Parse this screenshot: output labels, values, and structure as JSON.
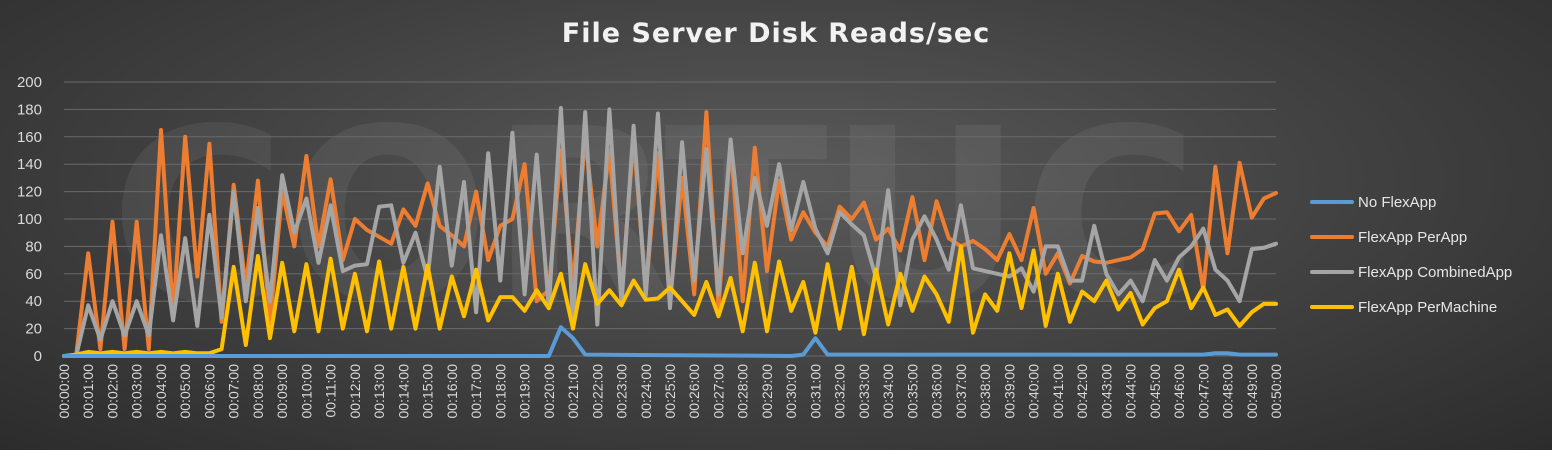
{
  "chart_data": {
    "type": "line",
    "title": "File Server Disk Reads/sec",
    "xlabel": "",
    "ylabel": "",
    "ylim": [
      0,
      200
    ],
    "yticks": [
      0,
      20,
      40,
      60,
      80,
      100,
      120,
      140,
      160,
      180,
      200
    ],
    "grid": true,
    "legend_position": "right",
    "x_tick_labels": [
      "00:00:00",
      "00:01:00",
      "00:02:00",
      "00:03:00",
      "00:04:00",
      "00:05:00",
      "00:06:00",
      "00:07:00",
      "00:08:00",
      "00:09:00",
      "00:10:00",
      "00:11:00",
      "00:12:00",
      "00:13:00",
      "00:14:00",
      "00:15:00",
      "00:16:00",
      "00:17:00",
      "00:18:00",
      "00:19:00",
      "00:20:00",
      "00:21:00",
      "00:22:00",
      "00:23:00",
      "00:24:00",
      "00:25:00",
      "00:26:00",
      "00:27:00",
      "00:28:00",
      "00:29:00",
      "00:30:00",
      "00:31:00",
      "00:32:00",
      "00:33:00",
      "00:34:00",
      "00:35:00",
      "00:36:00",
      "00:37:00",
      "00:38:00",
      "00:39:00",
      "00:40:00",
      "00:41:00",
      "00:42:00",
      "00:43:00",
      "00:44:00",
      "00:45:00",
      "00:46:00",
      "00:47:00",
      "00:48:00",
      "00:49:00",
      "00:50:00"
    ],
    "x_range_minutes": [
      0,
      50
    ],
    "series": [
      {
        "name": "No FlexApp",
        "color": "#5b9bd5",
        "x_minutes": [
          0,
          20,
          20.5,
          21,
          21.5,
          30,
          30.5,
          31,
          31.5,
          47,
          47.5,
          48,
          48.5,
          50
        ],
        "values": [
          0,
          0,
          21,
          13,
          1,
          0,
          1,
          13,
          1,
          1,
          2,
          2,
          1,
          1
        ]
      },
      {
        "name": "FlexApp PerApp",
        "color": "#ed7d31",
        "x_minutes": [
          0,
          0.5,
          1,
          1.5,
          2,
          2.5,
          3,
          3.5,
          4,
          4.5,
          5,
          5.5,
          6,
          6.5,
          7,
          7.5,
          8,
          8.5,
          9,
          9.5,
          10,
          10.5,
          11,
          11.5,
          12,
          12.5,
          13,
          13.5,
          14,
          14.5,
          15,
          15.5,
          16,
          16.5,
          17,
          17.5,
          18,
          18.5,
          19,
          19.5,
          20,
          20.5,
          21,
          21.5,
          22,
          22.5,
          23,
          23.5,
          24,
          24.5,
          25,
          25.5,
          26,
          26.5,
          27,
          27.5,
          28,
          28.5,
          29,
          29.5,
          30,
          30.5,
          31,
          31.5,
          32,
          32.5,
          33,
          33.5,
          34,
          34.5,
          35,
          35.5,
          36,
          36.5,
          37,
          37.5,
          38,
          38.5,
          39,
          39.5,
          40,
          40.5,
          41,
          41.5,
          42,
          42.5,
          43,
          43.5,
          44,
          44.5,
          45,
          45.5,
          46,
          46.5,
          47,
          47.5,
          48,
          48.5,
          49,
          49.5,
          50
        ],
        "values": [
          0,
          0,
          75,
          5,
          98,
          5,
          98,
          5,
          165,
          30,
          160,
          58,
          155,
          25,
          125,
          50,
          128,
          25,
          120,
          80,
          146,
          80,
          129,
          70,
          100,
          92,
          87,
          82,
          107,
          95,
          126,
          95,
          88,
          80,
          120,
          70,
          95,
          100,
          140,
          40,
          48,
          150,
          50,
          160,
          80,
          150,
          45,
          160,
          47,
          148,
          40,
          130,
          45,
          178,
          35,
          155,
          40,
          152,
          62,
          128,
          85,
          105,
          90,
          80,
          109,
          100,
          112,
          85,
          93,
          77,
          116,
          70,
          113,
          86,
          80,
          84,
          78,
          70,
          89,
          70,
          108,
          60,
          75,
          53,
          73,
          69,
          68,
          70,
          72,
          78,
          104,
          105,
          91,
          103,
          48,
          138,
          75,
          141,
          101,
          115,
          119
        ]
      },
      {
        "name": "FlexApp CombinedApp",
        "color": "#a5a5a5",
        "x_minutes": [
          0,
          0.5,
          1,
          1.5,
          2,
          2.5,
          3,
          3.5,
          4,
          4.5,
          5,
          5.5,
          6,
          6.5,
          7,
          7.5,
          8,
          8.5,
          9,
          9.5,
          10,
          10.5,
          11,
          11.5,
          12,
          12.5,
          13,
          13.5,
          14,
          14.5,
          15,
          15.5,
          16,
          16.5,
          17,
          17.5,
          18,
          18.5,
          19,
          19.5,
          20,
          20.5,
          21,
          21.5,
          22,
          22.5,
          23,
          23.5,
          24,
          24.5,
          25,
          25.5,
          26,
          26.5,
          27,
          27.5,
          28,
          28.5,
          29,
          29.5,
          30,
          30.5,
          31,
          31.5,
          32,
          32.5,
          33,
          33.5,
          34,
          34.5,
          35,
          35.5,
          36,
          36.5,
          37,
          37.5,
          38,
          38.5,
          39,
          39.5,
          40,
          40.5,
          41,
          41.5,
          42,
          42.5,
          43,
          43.5,
          44,
          44.5,
          45,
          45.5,
          46,
          46.5,
          47,
          47.5,
          48,
          48.5,
          49,
          49.5,
          50
        ],
        "values": [
          0,
          0,
          37,
          12,
          40,
          15,
          40,
          15,
          88,
          26,
          86,
          22,
          103,
          28,
          120,
          40,
          108,
          40,
          132,
          90,
          115,
          68,
          110,
          62,
          66,
          67,
          109,
          110,
          68,
          90,
          57,
          138,
          66,
          127,
          32,
          148,
          55,
          163,
          45,
          147,
          35,
          181,
          25,
          178,
          23,
          180,
          38,
          168,
          44,
          177,
          35,
          156,
          55,
          151,
          45,
          158,
          75,
          130,
          95,
          140,
          92,
          127,
          93,
          75,
          105,
          96,
          88,
          57,
          121,
          37,
          85,
          102,
          85,
          63,
          110,
          64,
          62,
          60,
          58,
          64,
          47,
          80,
          80,
          55,
          55,
          95,
          60,
          45,
          55,
          40,
          70,
          55,
          72,
          80,
          93,
          63,
          55,
          40,
          78,
          79,
          82
        ]
      },
      {
        "name": "FlexApp PerMachine",
        "color": "#ffc000",
        "x_minutes": [
          0,
          0.5,
          1,
          1.5,
          2,
          2.5,
          3,
          3.5,
          4,
          4.5,
          5,
          5.5,
          6,
          6.5,
          7,
          7.5,
          8,
          8.5,
          9,
          9.5,
          10,
          10.5,
          11,
          11.5,
          12,
          12.5,
          13,
          13.5,
          14,
          14.5,
          15,
          15.5,
          16,
          16.5,
          17,
          17.5,
          18,
          18.5,
          19,
          19.5,
          20,
          20.5,
          21,
          21.5,
          22,
          22.5,
          23,
          23.5,
          24,
          24.5,
          25,
          25.5,
          26,
          26.5,
          27,
          27.5,
          28,
          28.5,
          29,
          29.5,
          30,
          30.5,
          31,
          31.5,
          32,
          32.5,
          33,
          33.5,
          34,
          34.5,
          35,
          35.5,
          36,
          36.5,
          37,
          37.5,
          38,
          38.5,
          39,
          39.5,
          40,
          40.5,
          41,
          41.5,
          42,
          42.5,
          43,
          43.5,
          44,
          44.5,
          45,
          45.5,
          46,
          46.5,
          47,
          47.5,
          48,
          48.5,
          49,
          49.5,
          50
        ],
        "values": [
          0,
          1,
          3,
          2,
          3,
          2,
          3,
          2,
          3,
          2,
          3,
          2,
          2,
          5,
          65,
          8,
          73,
          13,
          68,
          18,
          67,
          18,
          71,
          20,
          60,
          18,
          69,
          20,
          65,
          20,
          66,
          20,
          58,
          29,
          63,
          26,
          43,
          43,
          33,
          48,
          35,
          60,
          20,
          67,
          38,
          48,
          37,
          55,
          41,
          42,
          50,
          40,
          30,
          54,
          29,
          57,
          18,
          68,
          18,
          69,
          33,
          54,
          17,
          67,
          20,
          65,
          16,
          63,
          23,
          60,
          33,
          58,
          45,
          25,
          80,
          17,
          45,
          33,
          75,
          35,
          77,
          22,
          60,
          25,
          47,
          40,
          55,
          34,
          46,
          23,
          35,
          40,
          63,
          35,
          50,
          30,
          34,
          22,
          32,
          38,
          38
        ]
      }
    ]
  }
}
